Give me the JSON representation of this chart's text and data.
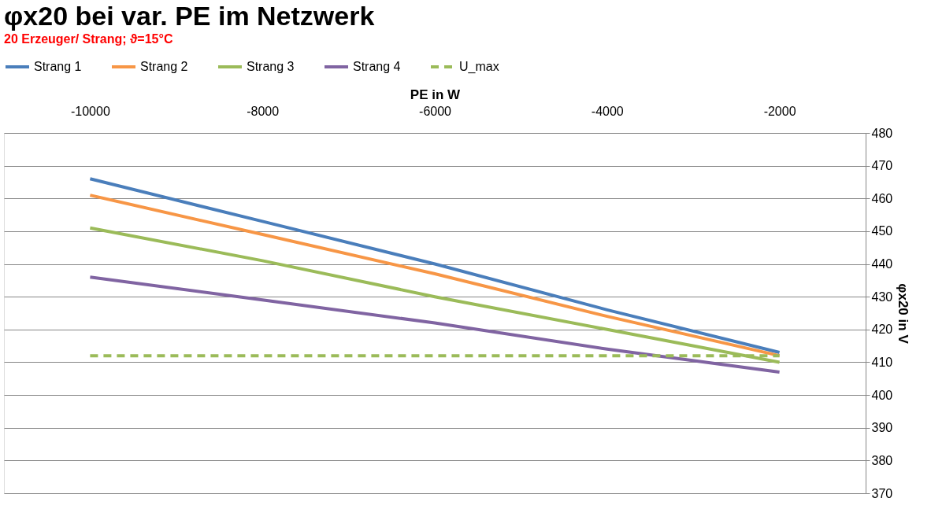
{
  "chart_data": {
    "type": "line",
    "title": "φx20 bei var. PE im Netzwerk",
    "subtitle": "20 Erzeuger/ Strang; ϑ=15°C",
    "xlabel": "PE in W",
    "ylabel": "φx20 in V",
    "categories": [
      "-10000",
      "-8000",
      "-6000",
      "-4000",
      "-2000"
    ],
    "series": [
      {
        "name": "Strang 1",
        "color": "#4a7ebb",
        "values": [
          466,
          453,
          440,
          426,
          413
        ]
      },
      {
        "name": "Strang 2",
        "color": "#f79646",
        "values": [
          461,
          449,
          437,
          424,
          412
        ]
      },
      {
        "name": "Strang 3",
        "color": "#9bbb59",
        "values": [
          451,
          441,
          430,
          420,
          410
        ]
      },
      {
        "name": "Strang 4",
        "color": "#8064a2",
        "values": [
          436,
          429,
          422,
          414,
          407
        ]
      },
      {
        "name": "U_max",
        "color": "#9bbb59",
        "line_style": "dashed",
        "values": [
          412,
          412,
          412,
          412,
          412
        ]
      }
    ],
    "ylim": [
      370,
      480
    ],
    "yticks": [
      370,
      380,
      390,
      400,
      410,
      420,
      430,
      440,
      450,
      460,
      470,
      480
    ],
    "grid": "y",
    "legend": "top",
    "marker": "none",
    "line_style": "solid"
  }
}
